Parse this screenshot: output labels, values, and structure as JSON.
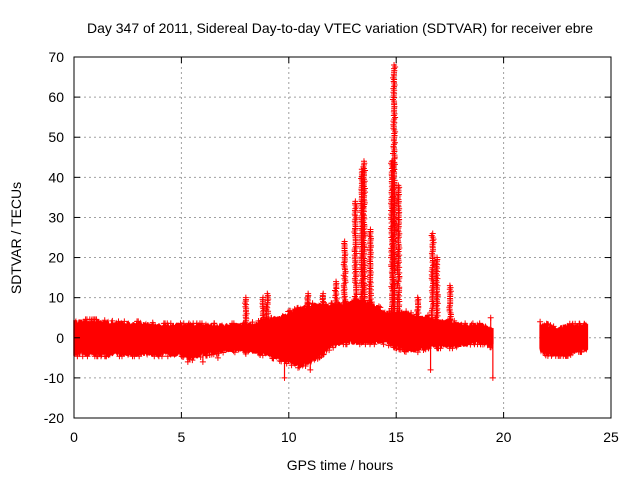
{
  "chart_data": {
    "type": "scatter",
    "title": "Day 347 of 2011, Sidereal Day-to-day VTEC variation (SDTVAR) for receiver ebre",
    "xlabel": "GPS time / hours",
    "ylabel": "SDTVAR / TECUs",
    "xlim": [
      0,
      25
    ],
    "ylim": [
      -20,
      70
    ],
    "xticks": [
      "0",
      "5",
      "10",
      "15",
      "20",
      "25"
    ],
    "yticks": [
      "-20",
      "-10",
      "0",
      "10",
      "20",
      "30",
      "40",
      "50",
      "60",
      "70"
    ],
    "grid": true,
    "marker": "+",
    "series": [
      {
        "name": "SDTVAR",
        "color": "#ff0000",
        "band": {
          "x": [
            0.0,
            1.0,
            2.0,
            3.0,
            4.0,
            5.0,
            5.5,
            6.0,
            7.0,
            8.0,
            9.0,
            9.5,
            10.0,
            10.5,
            11.0,
            12.0,
            12.5,
            13.0,
            13.5,
            14.0,
            14.5,
            15.0,
            15.5,
            16.0,
            16.5,
            17.0,
            17.5,
            18.0,
            18.5,
            19.0,
            19.5
          ],
          "low": [
            -4,
            -4,
            -4,
            -4,
            -4,
            -4,
            -5,
            -4,
            -3,
            -3,
            -4,
            -5,
            -6,
            -7,
            -6,
            -2,
            -1,
            -1,
            -1,
            -1,
            -1,
            -2,
            -3,
            -3,
            -2,
            -2,
            -2,
            -2,
            -1,
            -1,
            -2
          ],
          "high": [
            4,
            4,
            3.5,
            3.5,
            3,
            3,
            3,
            3,
            3,
            3,
            4,
            5,
            6,
            7,
            8,
            8,
            8,
            9,
            9,
            8,
            6,
            6,
            6,
            5,
            5,
            4,
            4,
            3,
            3,
            3,
            2
          ]
        },
        "band2": {
          "x": [
            21.7,
            22.0,
            22.5,
            23.0,
            23.5,
            23.9
          ],
          "low": [
            -3,
            -4,
            -4,
            -4,
            -3,
            -3
          ],
          "high": [
            3,
            3,
            2,
            3,
            3,
            3
          ]
        },
        "spikes": [
          {
            "x": 8.0,
            "peak": 10
          },
          {
            "x": 8.8,
            "peak": 10
          },
          {
            "x": 9.0,
            "peak": 11
          },
          {
            "x": 10.9,
            "peak": 11
          },
          {
            "x": 11.6,
            "peak": 11
          },
          {
            "x": 12.2,
            "peak": 14
          },
          {
            "x": 12.6,
            "peak": 24
          },
          {
            "x": 13.1,
            "peak": 34
          },
          {
            "x": 13.4,
            "peak": 42
          },
          {
            "x": 13.5,
            "peak": 44
          },
          {
            "x": 13.8,
            "peak": 27
          },
          {
            "x": 14.8,
            "peak": 44
          },
          {
            "x": 14.9,
            "peak": 68
          },
          {
            "x": 15.1,
            "peak": 38
          },
          {
            "x": 16.0,
            "peak": 10
          },
          {
            "x": 16.7,
            "peak": 26
          },
          {
            "x": 16.9,
            "peak": 20
          },
          {
            "x": 17.5,
            "peak": 13
          }
        ],
        "outliers": [
          {
            "x": 6.0,
            "y": -6
          },
          {
            "x": 6.7,
            "y": -5
          },
          {
            "x": 9.8,
            "y": -10
          },
          {
            "x": 11.0,
            "y": -8
          },
          {
            "x": 16.6,
            "y": -8
          },
          {
            "x": 19.5,
            "y": -10
          },
          {
            "x": 19.4,
            "y": 5
          },
          {
            "x": 21.7,
            "y": 4
          },
          {
            "x": 8.0,
            "y": -4
          },
          {
            "x": 5.3,
            "y": -6
          }
        ]
      }
    ]
  }
}
